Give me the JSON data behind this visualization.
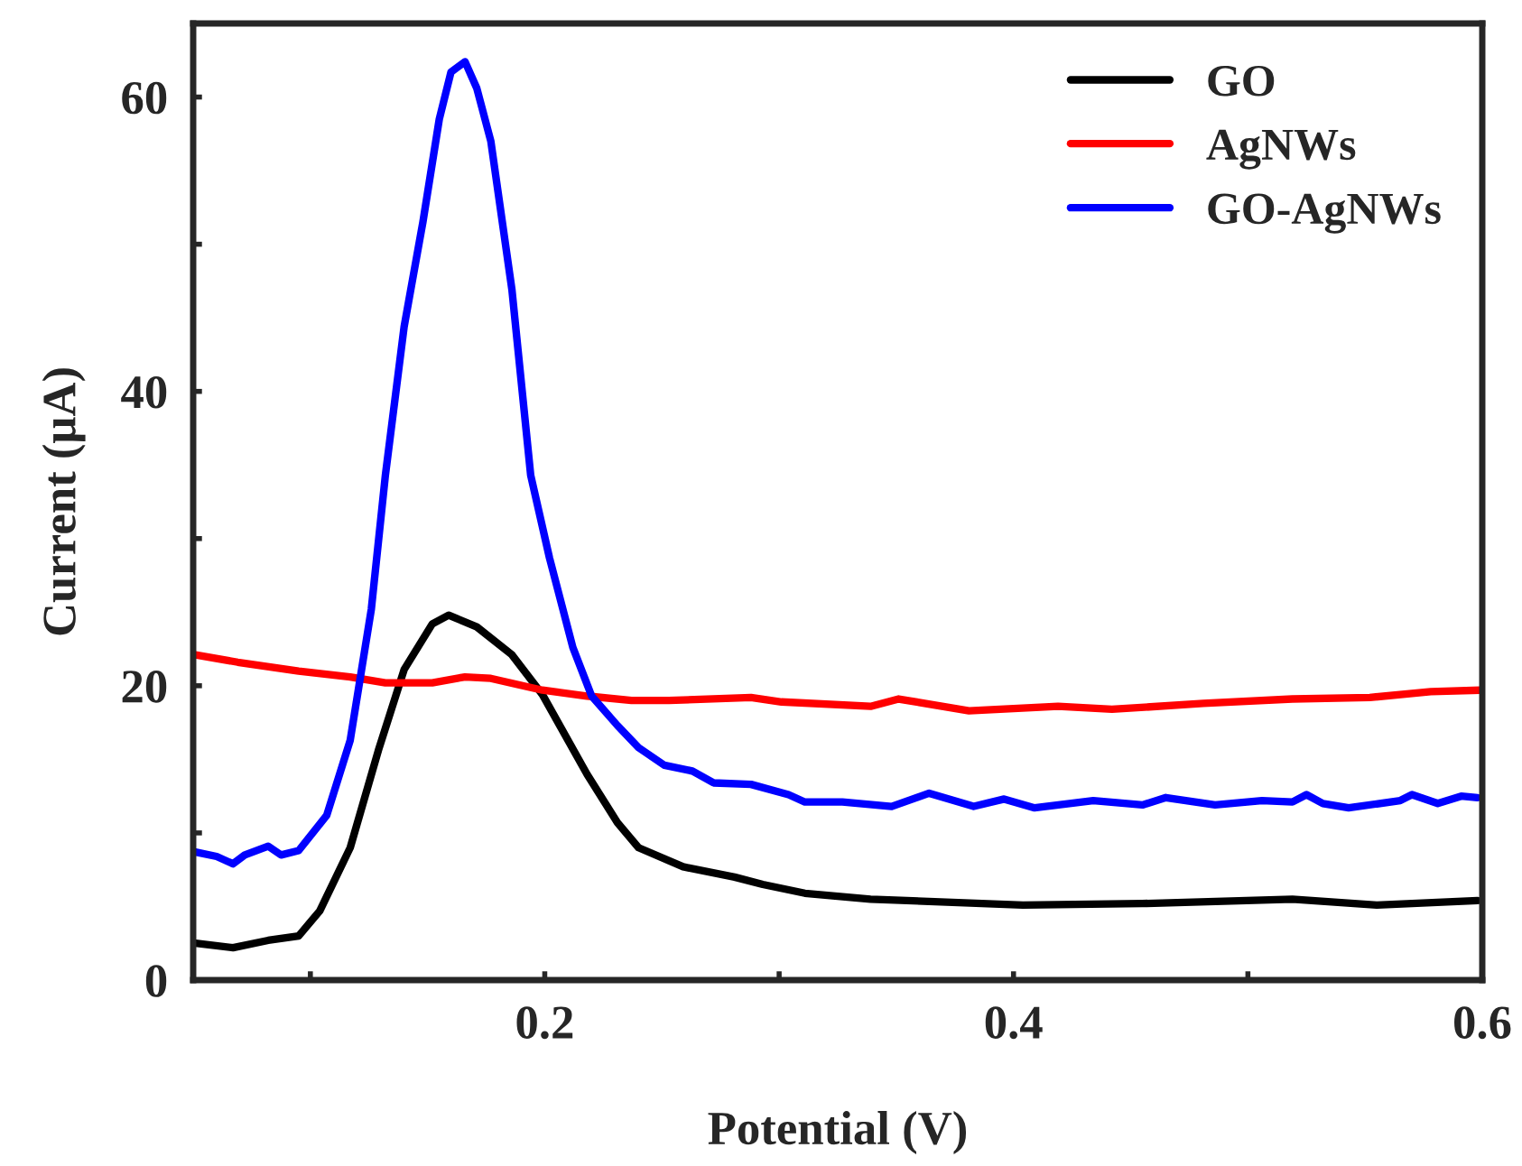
{
  "chart_data": {
    "type": "line",
    "xlabel": "Potential (V)",
    "ylabel": "Current (μA)",
    "xlim": [
      0.05,
      0.6
    ],
    "xticks": [
      {
        "value": 0.1,
        "label": null
      },
      0.2,
      {
        "value": 0.3,
        "label": null
      },
      0.4,
      {
        "value": 0.5,
        "label": null
      },
      0.6
    ],
    "ylim": [
      0,
      65
    ],
    "yticks": [
      0,
      {
        "value": 10,
        "label": null
      },
      20,
      {
        "value": 30,
        "label": null
      },
      40,
      {
        "value": 50,
        "label": null
      },
      60
    ],
    "grid": false,
    "legend": "top right",
    "marker": "none",
    "line_style": "solid",
    "series": [
      {
        "name": "GO",
        "color": "#000000",
        "x": [
          0.051,
          0.067,
          0.082,
          0.095,
          0.104,
          0.117,
          0.129,
          0.14,
          0.152,
          0.159,
          0.171,
          0.186,
          0.199,
          0.218,
          0.231,
          0.24,
          0.259,
          0.281,
          0.293,
          0.311,
          0.339,
          0.404,
          0.455,
          0.519,
          0.555,
          0.598
        ],
        "values": [
          2.5,
          2.2,
          2.7,
          3.0,
          4.7,
          9.0,
          15.6,
          21.1,
          24.2,
          24.8,
          24.0,
          22.1,
          19.4,
          14.0,
          10.7,
          9.0,
          7.7,
          7.0,
          6.5,
          5.9,
          5.5,
          5.1,
          5.2,
          5.5,
          5.1,
          5.4
        ]
      },
      {
        "name": "AgNWs",
        "color": "#ff0000",
        "x": [
          0.051,
          0.069,
          0.095,
          0.117,
          0.132,
          0.152,
          0.166,
          0.177,
          0.199,
          0.218,
          0.237,
          0.253,
          0.288,
          0.301,
          0.339,
          0.351,
          0.381,
          0.419,
          0.442,
          0.481,
          0.519,
          0.552,
          0.578,
          0.599
        ],
        "values": [
          22.1,
          21.6,
          21.0,
          20.6,
          20.2,
          20.2,
          20.6,
          20.5,
          19.7,
          19.3,
          19.0,
          19.0,
          19.2,
          18.9,
          18.6,
          19.1,
          18.3,
          18.6,
          18.4,
          18.8,
          19.1,
          19.2,
          19.6,
          19.7
        ]
      },
      {
        "name": "GO-AgNWs",
        "color": "#0000ff",
        "x": [
          0.051,
          0.06,
          0.067,
          0.072,
          0.082,
          0.0875,
          0.095,
          0.107,
          0.117,
          0.126,
          0.132,
          0.14,
          0.148,
          0.155,
          0.16,
          0.166,
          0.171,
          0.177,
          0.186,
          0.194,
          0.202,
          0.212,
          0.22,
          0.231,
          0.24,
          0.251,
          0.263,
          0.272,
          0.288,
          0.304,
          0.311,
          0.327,
          0.348,
          0.364,
          0.383,
          0.396,
          0.409,
          0.434,
          0.455,
          0.465,
          0.486,
          0.506,
          0.519,
          0.525,
          0.532,
          0.543,
          0.565,
          0.57,
          0.581,
          0.591,
          0.598
        ],
        "values": [
          8.7,
          8.4,
          7.9,
          8.5,
          9.1,
          8.5,
          8.8,
          11.2,
          16.3,
          25.2,
          34.3,
          44.4,
          51.5,
          58.5,
          61.7,
          62.4,
          60.6,
          57.0,
          46.9,
          34.3,
          28.7,
          22.6,
          19.3,
          17.3,
          15.8,
          14.6,
          14.2,
          13.4,
          13.3,
          12.6,
          12.1,
          12.1,
          11.8,
          12.7,
          11.8,
          12.3,
          11.7,
          12.2,
          11.9,
          12.4,
          11.9,
          12.2,
          12.1,
          12.6,
          12.0,
          11.7,
          12.2,
          12.6,
          12.0,
          12.5,
          12.4
        ]
      }
    ]
  }
}
